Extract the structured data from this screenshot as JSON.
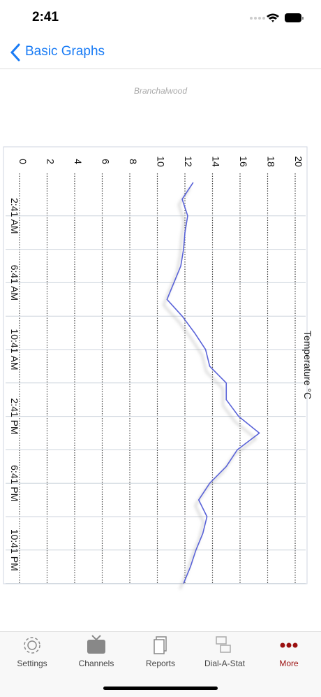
{
  "status_bar": {
    "time": "2:41"
  },
  "nav": {
    "back_title": "Basic Graphs"
  },
  "chart_data": {
    "type": "line",
    "subtitle": "Branchalwood",
    "ylabel": "Temperature °C",
    "categories": [
      null,
      null,
      "2:41 AM",
      null,
      null,
      null,
      "6:41 AM",
      null,
      null,
      null,
      "10:41 AM",
      null,
      null,
      null,
      "2:41 PM",
      null,
      null,
      null,
      "6:41 PM",
      null,
      null,
      null,
      "10:41 PM",
      null,
      null
    ],
    "series": [
      {
        "name": "Temperature",
        "color": "#5a64d8",
        "values": [
          12.6,
          11.8,
          12.2,
          12.0,
          11.9,
          11.7,
          11.2,
          10.7,
          11.8,
          12.7,
          13.5,
          13.8,
          15.0,
          15.0,
          15.9,
          17.4,
          15.8,
          15.0,
          13.8,
          13.0,
          13.6,
          13.3,
          12.8,
          12.4,
          11.9
        ]
      }
    ],
    "ylim": [
      0,
      20
    ],
    "yticks": [
      0,
      2,
      4,
      6,
      8,
      10,
      12,
      14,
      16,
      18,
      20
    ],
    "grid": true
  },
  "tab_bar": {
    "items": [
      "Settings",
      "Channels",
      "Reports",
      "Dial-A-Stat",
      "More"
    ],
    "active": 4
  }
}
